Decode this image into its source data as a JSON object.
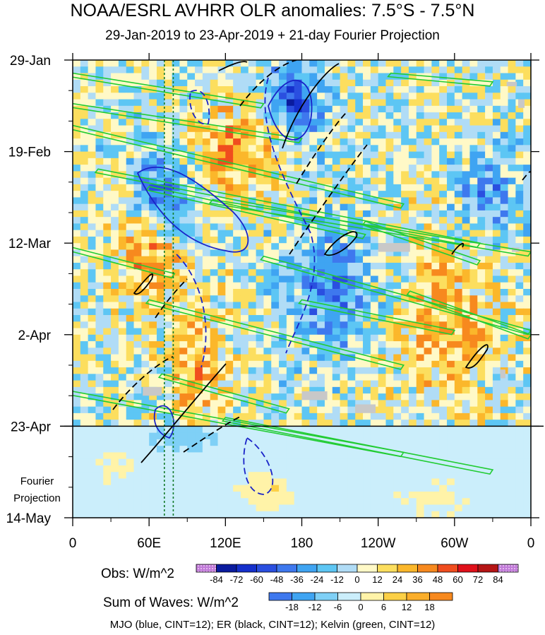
{
  "title": "NOAA/ESRL AVHRR OLR anomalies: 7.5°S - 7.5°N",
  "subtitle": "29-Jan-2019 to 23-Apr-2019 + 21-day Fourier Projection",
  "fourier_label": [
    "Fourier",
    "Projection"
  ],
  "footer": "MJO (blue, CINT=12); ER (black, CINT=12); Kelvin (green, CINT=12)",
  "colorbar_obs": {
    "label": "Obs: W/m^2",
    "ticks": [
      "-84",
      "-72",
      "-60",
      "-48",
      "-36",
      "-24",
      "-12",
      "0",
      "12",
      "24",
      "36",
      "48",
      "60",
      "72",
      "84"
    ],
    "colors": [
      "#9b5fd6",
      "#0a1b9e",
      "#1530cc",
      "#2a4fe0",
      "#3e78ee",
      "#3fa4f2",
      "#5dc6f4",
      "#b0dcf6",
      "#fff9c7",
      "#fcde5e",
      "#fbb72b",
      "#f7891e",
      "#f04d1e",
      "#e0101a",
      "#b51515",
      "#8e1414"
    ]
  },
  "colorbar_waves": {
    "label": "Sum of Waves: W/m^2",
    "ticks": [
      "-18",
      "-12",
      "-6",
      "0",
      "6",
      "12",
      "18"
    ],
    "colors": [
      "#3e78ee",
      "#3fa4f2",
      "#7fd0f6",
      "#cbeefb",
      "#fff3a8",
      "#fcd046",
      "#fbae2a",
      "#f7891e"
    ]
  },
  "chart_data": {
    "type": "heatmap",
    "title": "NOAA/ESRL AVHRR OLR anomalies: 7.5°S - 7.5°N",
    "subtitle": "29-Jan-2019 to 23-Apr-2019 + 21-day Fourier Projection",
    "x_ticks": [
      "0",
      "60E",
      "120E",
      "180",
      "120W",
      "60W",
      "0"
    ],
    "x_tick_lons": [
      0,
      60,
      120,
      180,
      240,
      300,
      360
    ],
    "y_ticks": [
      "29-Jan",
      "19-Feb",
      "12-Mar",
      "2-Apr",
      "23-Apr",
      "14-May"
    ],
    "y_tick_days": [
      0,
      21,
      42,
      63,
      84,
      105
    ],
    "observation_end": "23-Apr",
    "dotted_lines_lon": [
      72,
      79
    ],
    "series": [
      {
        "name": "MJO",
        "color": "#1a23c8",
        "cint": 12
      },
      {
        "name": "ER",
        "color": "#000000",
        "cint": 12
      },
      {
        "name": "Kelvin",
        "color": "#22cc33",
        "cint": 12
      }
    ]
  }
}
